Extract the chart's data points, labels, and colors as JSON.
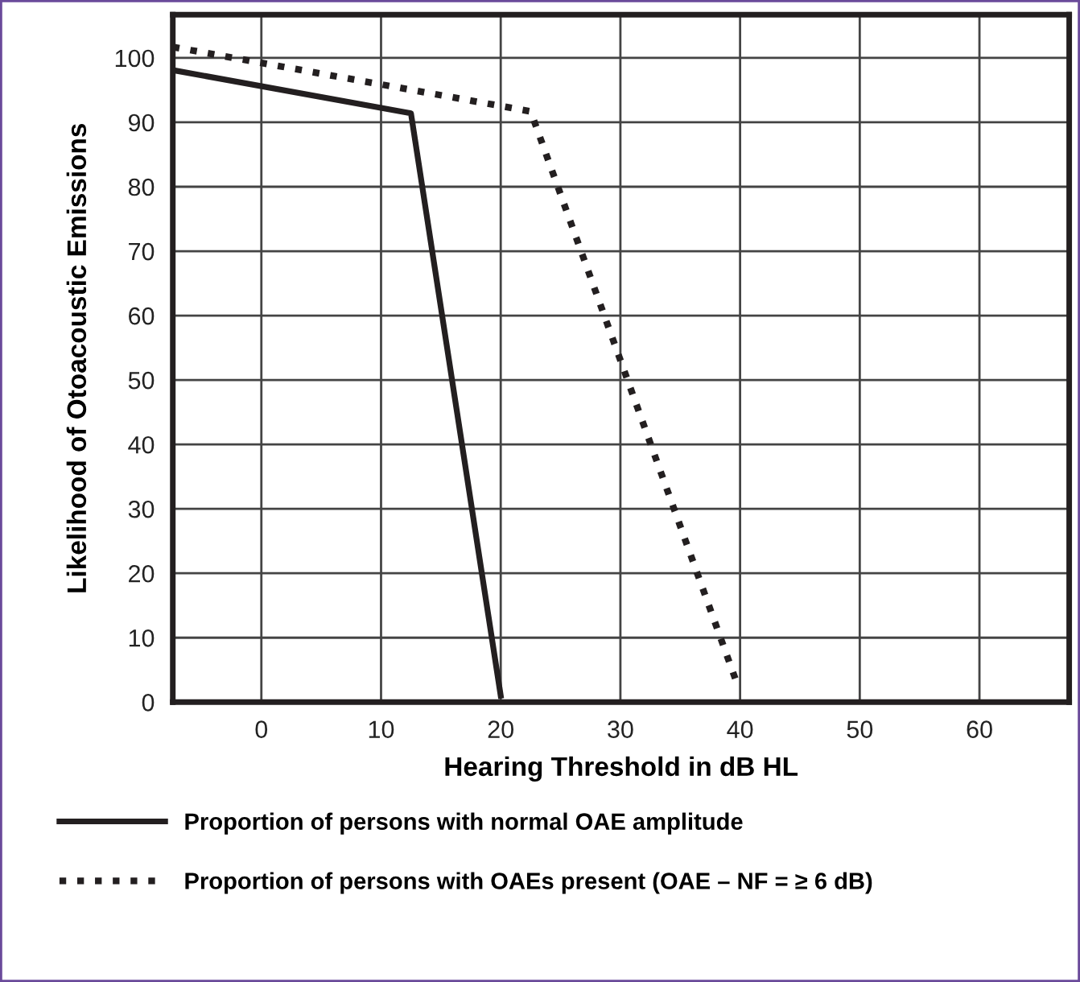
{
  "chart_data": {
    "type": "line",
    "xlabel": "Hearing Threshold in dB HL",
    "ylabel": "Likelihood of Otoacoustic Emissions",
    "xlim": [
      -7.4,
      67.5
    ],
    "ylim": [
      0,
      106.7
    ],
    "xticks": [
      0,
      10,
      20,
      30,
      40,
      50,
      60
    ],
    "yticks": [
      0,
      10,
      20,
      30,
      40,
      50,
      60,
      70,
      80,
      90,
      100
    ],
    "grid": true,
    "legend": "bottom",
    "series": [
      {
        "name": "Proportion of persons with normal OAE amplitude",
        "color": "#231f20",
        "line_style": "solid",
        "x": [
          -7.4,
          12.5,
          20
        ],
        "values": [
          98.1,
          91.4,
          1
        ]
      },
      {
        "name": "Proportion of persons with OAEs present (OAE – NF = ≥ 6 dB)",
        "color": "#231f20",
        "line_style": "dotted",
        "x": [
          -7.4,
          22.5,
          39.8
        ],
        "values": [
          101.7,
          91.7,
          2.6
        ]
      }
    ]
  }
}
